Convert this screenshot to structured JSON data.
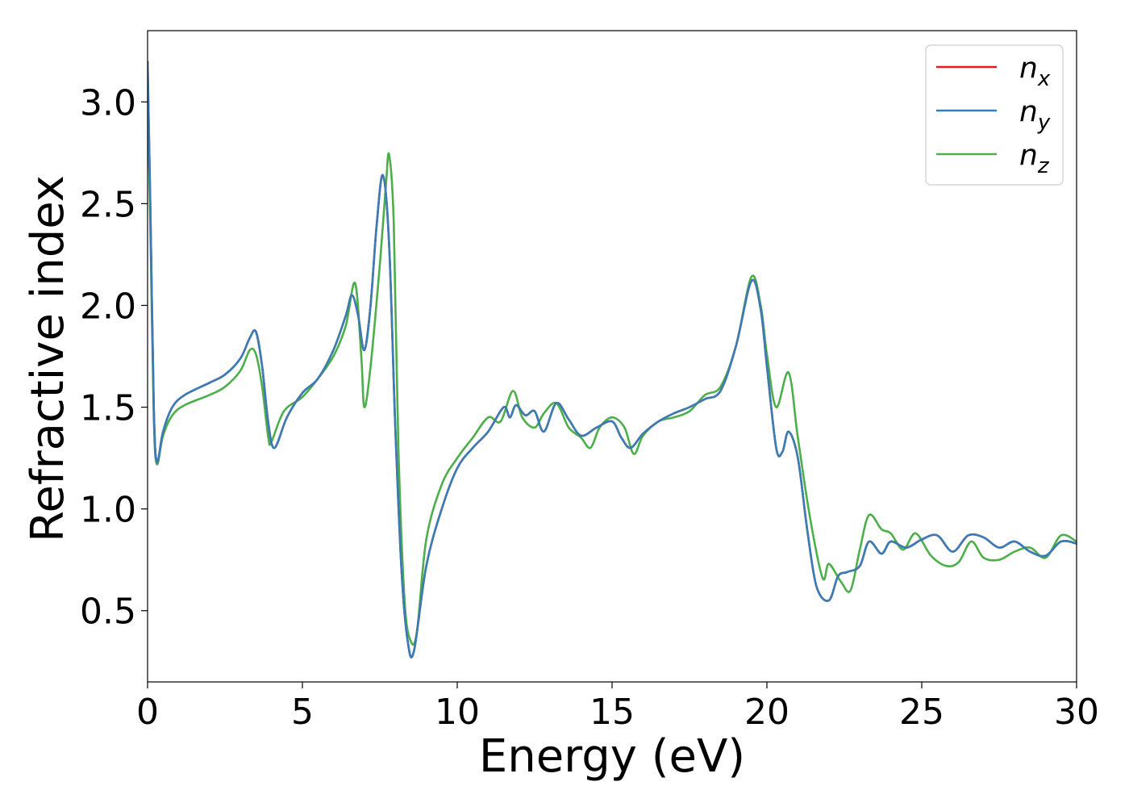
{
  "chart_data": {
    "type": "line",
    "title": "",
    "xlabel": "Energy (eV)",
    "ylabel": "Refractive index",
    "xlim": [
      0,
      30
    ],
    "ylim": [
      0.15,
      3.35
    ],
    "xticks": [
      0,
      5,
      10,
      15,
      20,
      25,
      30
    ],
    "xtick_labels": [
      "0",
      "5",
      "10",
      "15",
      "20",
      "25",
      "30"
    ],
    "yticks": [
      0.5,
      1.0,
      1.5,
      2.0,
      2.5,
      3.0
    ],
    "ytick_labels": [
      "0.5",
      "1.0",
      "1.5",
      "2.0",
      "2.5",
      "3.0"
    ],
    "grid": false,
    "legend_position": "top-right",
    "series": [
      {
        "name": "n_x",
        "label_main": "n",
        "label_sub": "x",
        "color": "#e41a1c",
        "points": [
          [
            0,
            3.2
          ],
          [
            0.1,
            2.4
          ],
          [
            0.2,
            1.5
          ],
          [
            0.3,
            1.23
          ],
          [
            0.5,
            1.38
          ],
          [
            0.8,
            1.5
          ],
          [
            1.2,
            1.56
          ],
          [
            2,
            1.62
          ],
          [
            2.5,
            1.66
          ],
          [
            3,
            1.74
          ],
          [
            3.3,
            1.84
          ],
          [
            3.5,
            1.87
          ],
          [
            3.7,
            1.7
          ],
          [
            3.9,
            1.42
          ],
          [
            4.1,
            1.3
          ],
          [
            4.5,
            1.45
          ],
          [
            5,
            1.57
          ],
          [
            5.5,
            1.64
          ],
          [
            6,
            1.78
          ],
          [
            6.4,
            1.95
          ],
          [
            6.6,
            2.05
          ],
          [
            6.8,
            1.95
          ],
          [
            7,
            1.78
          ],
          [
            7.2,
            2.0
          ],
          [
            7.4,
            2.4
          ],
          [
            7.6,
            2.64
          ],
          [
            7.8,
            2.3
          ],
          [
            8.0,
            1.4
          ],
          [
            8.2,
            0.7
          ],
          [
            8.4,
            0.35
          ],
          [
            8.6,
            0.3
          ],
          [
            9,
            0.72
          ],
          [
            9.5,
            1.0
          ],
          [
            10,
            1.2
          ],
          [
            10.5,
            1.3
          ],
          [
            11,
            1.38
          ],
          [
            11.5,
            1.5
          ],
          [
            11.7,
            1.45
          ],
          [
            11.9,
            1.51
          ],
          [
            12.2,
            1.46
          ],
          [
            12.5,
            1.48
          ],
          [
            12.8,
            1.38
          ],
          [
            13.2,
            1.52
          ],
          [
            13.6,
            1.44
          ],
          [
            14,
            1.36
          ],
          [
            14.5,
            1.4
          ],
          [
            15,
            1.43
          ],
          [
            15.3,
            1.35
          ],
          [
            15.6,
            1.3
          ],
          [
            16,
            1.37
          ],
          [
            16.5,
            1.43
          ],
          [
            17,
            1.47
          ],
          [
            17.5,
            1.5
          ],
          [
            18,
            1.54
          ],
          [
            18.5,
            1.58
          ],
          [
            19,
            1.8
          ],
          [
            19.5,
            2.12
          ],
          [
            19.8,
            1.98
          ],
          [
            20,
            1.7
          ],
          [
            20.3,
            1.3
          ],
          [
            20.5,
            1.28
          ],
          [
            20.7,
            1.38
          ],
          [
            21,
            1.25
          ],
          [
            21.3,
            0.9
          ],
          [
            21.6,
            0.62
          ],
          [
            22,
            0.55
          ],
          [
            22.3,
            0.67
          ],
          [
            22.6,
            0.69
          ],
          [
            23,
            0.72
          ],
          [
            23.3,
            0.84
          ],
          [
            23.7,
            0.78
          ],
          [
            24,
            0.84
          ],
          [
            24.5,
            0.81
          ],
          [
            25,
            0.85
          ],
          [
            25.5,
            0.87
          ],
          [
            26,
            0.79
          ],
          [
            26.5,
            0.87
          ],
          [
            27,
            0.86
          ],
          [
            27.5,
            0.81
          ],
          [
            28,
            0.84
          ],
          [
            28.5,
            0.79
          ],
          [
            29,
            0.77
          ],
          [
            29.5,
            0.84
          ],
          [
            30,
            0.83
          ]
        ]
      },
      {
        "name": "n_y",
        "label_main": "n",
        "label_sub": "y",
        "color": "#377eb8",
        "points": [
          [
            0,
            3.2
          ],
          [
            0.1,
            2.4
          ],
          [
            0.2,
            1.5
          ],
          [
            0.3,
            1.23
          ],
          [
            0.5,
            1.38
          ],
          [
            0.8,
            1.5
          ],
          [
            1.2,
            1.56
          ],
          [
            2,
            1.62
          ],
          [
            2.5,
            1.66
          ],
          [
            3,
            1.74
          ],
          [
            3.3,
            1.84
          ],
          [
            3.5,
            1.87
          ],
          [
            3.7,
            1.7
          ],
          [
            3.9,
            1.42
          ],
          [
            4.1,
            1.3
          ],
          [
            4.5,
            1.45
          ],
          [
            5,
            1.57
          ],
          [
            5.5,
            1.64
          ],
          [
            6,
            1.78
          ],
          [
            6.4,
            1.95
          ],
          [
            6.6,
            2.05
          ],
          [
            6.8,
            1.95
          ],
          [
            7,
            1.78
          ],
          [
            7.2,
            2.0
          ],
          [
            7.4,
            2.4
          ],
          [
            7.6,
            2.64
          ],
          [
            7.8,
            2.3
          ],
          [
            8.0,
            1.4
          ],
          [
            8.2,
            0.7
          ],
          [
            8.4,
            0.35
          ],
          [
            8.6,
            0.3
          ],
          [
            9,
            0.72
          ],
          [
            9.5,
            1.0
          ],
          [
            10,
            1.2
          ],
          [
            10.5,
            1.3
          ],
          [
            11,
            1.38
          ],
          [
            11.5,
            1.5
          ],
          [
            11.7,
            1.45
          ],
          [
            11.9,
            1.51
          ],
          [
            12.2,
            1.46
          ],
          [
            12.5,
            1.48
          ],
          [
            12.8,
            1.38
          ],
          [
            13.2,
            1.52
          ],
          [
            13.6,
            1.44
          ],
          [
            14,
            1.36
          ],
          [
            14.5,
            1.4
          ],
          [
            15,
            1.43
          ],
          [
            15.3,
            1.35
          ],
          [
            15.6,
            1.3
          ],
          [
            16,
            1.37
          ],
          [
            16.5,
            1.43
          ],
          [
            17,
            1.47
          ],
          [
            17.5,
            1.5
          ],
          [
            18,
            1.54
          ],
          [
            18.5,
            1.58
          ],
          [
            19,
            1.8
          ],
          [
            19.5,
            2.12
          ],
          [
            19.8,
            1.98
          ],
          [
            20,
            1.7
          ],
          [
            20.3,
            1.3
          ],
          [
            20.5,
            1.28
          ],
          [
            20.7,
            1.38
          ],
          [
            21,
            1.25
          ],
          [
            21.3,
            0.9
          ],
          [
            21.6,
            0.62
          ],
          [
            22,
            0.55
          ],
          [
            22.3,
            0.67
          ],
          [
            22.6,
            0.69
          ],
          [
            23,
            0.72
          ],
          [
            23.3,
            0.84
          ],
          [
            23.7,
            0.78
          ],
          [
            24,
            0.84
          ],
          [
            24.5,
            0.81
          ],
          [
            25,
            0.85
          ],
          [
            25.5,
            0.87
          ],
          [
            26,
            0.79
          ],
          [
            26.5,
            0.87
          ],
          [
            27,
            0.86
          ],
          [
            27.5,
            0.81
          ],
          [
            28,
            0.84
          ],
          [
            28.5,
            0.79
          ],
          [
            29,
            0.77
          ],
          [
            29.5,
            0.84
          ],
          [
            30,
            0.83
          ]
        ]
      },
      {
        "name": "n_z",
        "label_main": "n",
        "label_sub": "z",
        "color": "#4daf4a",
        "points": [
          [
            0,
            3.1
          ],
          [
            0.1,
            2.3
          ],
          [
            0.2,
            1.45
          ],
          [
            0.3,
            1.22
          ],
          [
            0.5,
            1.36
          ],
          [
            0.8,
            1.46
          ],
          [
            1.2,
            1.51
          ],
          [
            2,
            1.56
          ],
          [
            2.5,
            1.6
          ],
          [
            3,
            1.68
          ],
          [
            3.3,
            1.78
          ],
          [
            3.5,
            1.76
          ],
          [
            3.7,
            1.6
          ],
          [
            3.9,
            1.35
          ],
          [
            4.0,
            1.33
          ],
          [
            4.4,
            1.48
          ],
          [
            5,
            1.55
          ],
          [
            5.5,
            1.64
          ],
          [
            6,
            1.75
          ],
          [
            6.4,
            1.9
          ],
          [
            6.7,
            2.11
          ],
          [
            6.9,
            1.75
          ],
          [
            7.0,
            1.5
          ],
          [
            7.2,
            1.7
          ],
          [
            7.5,
            2.2
          ],
          [
            7.7,
            2.6
          ],
          [
            7.8,
            2.74
          ],
          [
            7.95,
            2.4
          ],
          [
            8.1,
            1.3
          ],
          [
            8.3,
            0.55
          ],
          [
            8.5,
            0.35
          ],
          [
            8.7,
            0.4
          ],
          [
            9,
            0.85
          ],
          [
            9.5,
            1.12
          ],
          [
            10,
            1.25
          ],
          [
            10.5,
            1.35
          ],
          [
            11,
            1.45
          ],
          [
            11.4,
            1.43
          ],
          [
            11.8,
            1.58
          ],
          [
            12.1,
            1.45
          ],
          [
            12.5,
            1.4
          ],
          [
            12.8,
            1.47
          ],
          [
            13.2,
            1.52
          ],
          [
            13.6,
            1.4
          ],
          [
            14,
            1.35
          ],
          [
            14.3,
            1.3
          ],
          [
            14.6,
            1.4
          ],
          [
            15,
            1.45
          ],
          [
            15.4,
            1.4
          ],
          [
            15.7,
            1.27
          ],
          [
            16,
            1.36
          ],
          [
            16.5,
            1.43
          ],
          [
            17,
            1.45
          ],
          [
            17.5,
            1.48
          ],
          [
            18,
            1.56
          ],
          [
            18.5,
            1.6
          ],
          [
            19,
            1.8
          ],
          [
            19.5,
            2.14
          ],
          [
            19.8,
            2.0
          ],
          [
            20,
            1.76
          ],
          [
            20.3,
            1.5
          ],
          [
            20.7,
            1.67
          ],
          [
            21,
            1.35
          ],
          [
            21.4,
            0.95
          ],
          [
            21.8,
            0.66
          ],
          [
            22,
            0.73
          ],
          [
            22.4,
            0.64
          ],
          [
            22.7,
            0.6
          ],
          [
            23,
            0.8
          ],
          [
            23.3,
            0.97
          ],
          [
            23.7,
            0.9
          ],
          [
            24,
            0.88
          ],
          [
            24.4,
            0.8
          ],
          [
            24.8,
            0.88
          ],
          [
            25.3,
            0.77
          ],
          [
            25.8,
            0.72
          ],
          [
            26.2,
            0.74
          ],
          [
            26.6,
            0.84
          ],
          [
            27,
            0.76
          ],
          [
            27.5,
            0.75
          ],
          [
            28,
            0.79
          ],
          [
            28.5,
            0.81
          ],
          [
            29,
            0.76
          ],
          [
            29.5,
            0.87
          ],
          [
            30,
            0.84
          ]
        ]
      }
    ]
  }
}
